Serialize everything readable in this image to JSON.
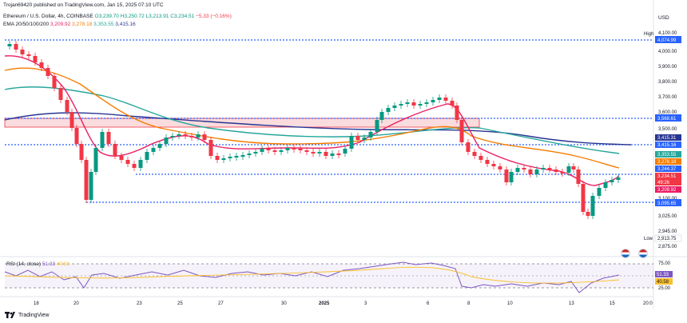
{
  "publish_line": "Trojan69420 published on TradingView.com, Jan 15, 2025 07:10 UTC",
  "symbol": {
    "name": "Ethereum / U.S. Dollar, 4h, COINBASE",
    "open": "O3,239.70",
    "high": "H3,250.72",
    "low": "L3,213.91",
    "close": "C3,234.51",
    "change": "−5.33 (−0.16%)"
  },
  "ema": {
    "label": "EMA 20/50/100/200",
    "v20": "3,209.92",
    "v50": "3,278.18",
    "v100": "3,353.55",
    "v200": "3,415.16"
  },
  "currency": "USD",
  "price_axis": {
    "ticks": [
      "4,100.00",
      "4,000.00",
      "3,900.00",
      "3,800.00",
      "3,700.00",
      "3,600.00",
      "3,500.00",
      "3,400.00",
      "3,100.00",
      "3,025.00",
      "2,945.00",
      "2,875.00"
    ],
    "high_label": "High",
    "low_label": "Low",
    "tags": {
      "high": "4,074.99",
      "resistance_upper": "3,568.61",
      "ema200": "3,415.31",
      "ema200b": "3,415.16",
      "ema100": "3,353.55",
      "ema50": "3,278.18",
      "level_mid": "3,244.37",
      "price": "3,234.51",
      "countdown": "49:26",
      "ema20": "3,209.92",
      "support": "3,095.65",
      "low": "2,913.75"
    }
  },
  "rsi": {
    "label": "RSI (14, close)",
    "value": "51.33",
    "ma": "40.58",
    "ticks": [
      "75.00",
      "25.00"
    ],
    "tag_value": "51.33",
    "tag_ma": "40.58"
  },
  "time_axis": [
    "18",
    "20",
    "23",
    "25",
    "27",
    "30",
    "2025",
    "3",
    "6",
    "8",
    "10",
    "13",
    "15",
    "20:0"
  ],
  "footer": {
    "brand": "TradingView",
    "logo": "tradingview-logo-icon"
  },
  "colors": {
    "up": "#089981",
    "down": "#f23645",
    "ema20": "#e91e63",
    "ema50": "#f57c00",
    "ema100": "#26a69a",
    "ema200": "#283593",
    "levels": "#2962ff"
  }
}
